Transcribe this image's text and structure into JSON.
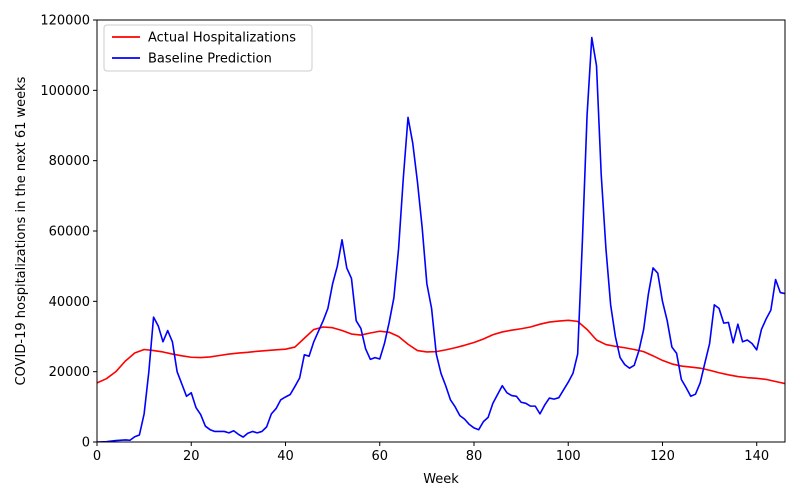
{
  "chart_data": {
    "type": "line",
    "xlabel": "Week",
    "ylabel": "COVID-19 hospitalizations in the next 61 weeks",
    "xlim": [
      0,
      146
    ],
    "ylim": [
      0,
      120000
    ],
    "xticks": [
      0,
      20,
      40,
      60,
      80,
      100,
      120,
      140
    ],
    "yticks": [
      0,
      20000,
      40000,
      60000,
      80000,
      100000,
      120000
    ],
    "grid": false,
    "legend_position": "upper-left",
    "series": [
      {
        "name": "Actual Hospitalizations",
        "color": "#ff0000",
        "points": [
          [
            0,
            16800
          ],
          [
            2,
            18000
          ],
          [
            4,
            20000
          ],
          [
            6,
            23000
          ],
          [
            8,
            25300
          ],
          [
            10,
            26300
          ],
          [
            12,
            26000
          ],
          [
            14,
            25600
          ],
          [
            16,
            25000
          ],
          [
            18,
            24500
          ],
          [
            20,
            24100
          ],
          [
            22,
            24000
          ],
          [
            24,
            24200
          ],
          [
            26,
            24600
          ],
          [
            28,
            25000
          ],
          [
            30,
            25300
          ],
          [
            32,
            25500
          ],
          [
            34,
            25800
          ],
          [
            36,
            26000
          ],
          [
            38,
            26200
          ],
          [
            40,
            26400
          ],
          [
            42,
            27000
          ],
          [
            44,
            29500
          ],
          [
            46,
            32000
          ],
          [
            48,
            32700
          ],
          [
            50,
            32500
          ],
          [
            52,
            31700
          ],
          [
            54,
            30700
          ],
          [
            56,
            30400
          ],
          [
            58,
            31000
          ],
          [
            60,
            31500
          ],
          [
            62,
            31200
          ],
          [
            64,
            30000
          ],
          [
            66,
            27800
          ],
          [
            68,
            26000
          ],
          [
            70,
            25600
          ],
          [
            72,
            25700
          ],
          [
            74,
            26200
          ],
          [
            76,
            26800
          ],
          [
            78,
            27500
          ],
          [
            80,
            28300
          ],
          [
            82,
            29300
          ],
          [
            84,
            30500
          ],
          [
            86,
            31300
          ],
          [
            88,
            31800
          ],
          [
            90,
            32200
          ],
          [
            92,
            32700
          ],
          [
            94,
            33500
          ],
          [
            96,
            34100
          ],
          [
            98,
            34400
          ],
          [
            100,
            34600
          ],
          [
            102,
            34300
          ],
          [
            104,
            32000
          ],
          [
            106,
            29000
          ],
          [
            108,
            27700
          ],
          [
            110,
            27200
          ],
          [
            112,
            26800
          ],
          [
            114,
            26300
          ],
          [
            116,
            25700
          ],
          [
            118,
            24500
          ],
          [
            120,
            23200
          ],
          [
            122,
            22200
          ],
          [
            124,
            21600
          ],
          [
            126,
            21300
          ],
          [
            128,
            21000
          ],
          [
            130,
            20400
          ],
          [
            132,
            19700
          ],
          [
            134,
            19100
          ],
          [
            136,
            18600
          ],
          [
            138,
            18300
          ],
          [
            140,
            18100
          ],
          [
            142,
            17800
          ],
          [
            144,
            17200
          ],
          [
            146,
            16600
          ]
        ]
      },
      {
        "name": "Baseline Prediction",
        "color": "#0000ff",
        "points": [
          [
            0,
            0
          ],
          [
            2,
            100
          ],
          [
            4,
            400
          ],
          [
            6,
            600
          ],
          [
            7,
            500
          ],
          [
            8,
            1500
          ],
          [
            9,
            2000
          ],
          [
            10,
            8000
          ],
          [
            11,
            20000
          ],
          [
            12,
            35500
          ],
          [
            13,
            33000
          ],
          [
            14,
            28500
          ],
          [
            15,
            31700
          ],
          [
            16,
            28500
          ],
          [
            17,
            20000
          ],
          [
            18,
            16500
          ],
          [
            19,
            13000
          ],
          [
            20,
            14000
          ],
          [
            21,
            9800
          ],
          [
            22,
            7800
          ],
          [
            23,
            4500
          ],
          [
            24,
            3500
          ],
          [
            25,
            3000
          ],
          [
            26,
            3000
          ],
          [
            27,
            3000
          ],
          [
            28,
            2600
          ],
          [
            29,
            3200
          ],
          [
            30,
            2200
          ],
          [
            31,
            1400
          ],
          [
            32,
            2500
          ],
          [
            33,
            3000
          ],
          [
            34,
            2600
          ],
          [
            35,
            3000
          ],
          [
            36,
            4300
          ],
          [
            37,
            8000
          ],
          [
            38,
            9500
          ],
          [
            39,
            12000
          ],
          [
            40,
            12800
          ],
          [
            41,
            13500
          ],
          [
            42,
            15800
          ],
          [
            43,
            18200
          ],
          [
            44,
            24800
          ],
          [
            45,
            24400
          ],
          [
            46,
            28500
          ],
          [
            47,
            31500
          ],
          [
            48,
            34500
          ],
          [
            49,
            38000
          ],
          [
            50,
            45000
          ],
          [
            51,
            50000
          ],
          [
            52,
            57500
          ],
          [
            53,
            49500
          ],
          [
            54,
            46500
          ],
          [
            55,
            34500
          ],
          [
            56,
            32300
          ],
          [
            57,
            26500
          ],
          [
            58,
            23500
          ],
          [
            59,
            24000
          ],
          [
            60,
            23600
          ],
          [
            61,
            28000
          ],
          [
            62,
            34000
          ],
          [
            63,
            41000
          ],
          [
            64,
            55000
          ],
          [
            65,
            75000
          ],
          [
            66,
            92300
          ],
          [
            67,
            85000
          ],
          [
            68,
            74000
          ],
          [
            69,
            61000
          ],
          [
            70,
            45000
          ],
          [
            71,
            38000
          ],
          [
            72,
            25000
          ],
          [
            73,
            19500
          ],
          [
            74,
            16000
          ],
          [
            75,
            12000
          ],
          [
            76,
            10000
          ],
          [
            77,
            7500
          ],
          [
            78,
            6500
          ],
          [
            79,
            5000
          ],
          [
            80,
            4000
          ],
          [
            81,
            3500
          ],
          [
            82,
            5800
          ],
          [
            83,
            7000
          ],
          [
            84,
            11000
          ],
          [
            85,
            13500
          ],
          [
            86,
            16000
          ],
          [
            87,
            14000
          ],
          [
            88,
            13200
          ],
          [
            89,
            13000
          ],
          [
            90,
            11300
          ],
          [
            91,
            11000
          ],
          [
            92,
            10200
          ],
          [
            93,
            10200
          ],
          [
            94,
            8000
          ],
          [
            95,
            10500
          ],
          [
            96,
            12500
          ],
          [
            97,
            12200
          ],
          [
            98,
            12600
          ],
          [
            99,
            14800
          ],
          [
            100,
            17000
          ],
          [
            101,
            19500
          ],
          [
            102,
            25000
          ],
          [
            103,
            57000
          ],
          [
            104,
            93000
          ],
          [
            105,
            115000
          ],
          [
            106,
            107000
          ],
          [
            107,
            76000
          ],
          [
            108,
            55000
          ],
          [
            109,
            39000
          ],
          [
            110,
            30000
          ],
          [
            111,
            24000
          ],
          [
            112,
            22000
          ],
          [
            113,
            21000
          ],
          [
            114,
            21800
          ],
          [
            115,
            26000
          ],
          [
            116,
            32000
          ],
          [
            117,
            42000
          ],
          [
            118,
            49500
          ],
          [
            119,
            48000
          ],
          [
            120,
            40000
          ],
          [
            121,
            34500
          ],
          [
            122,
            27000
          ],
          [
            123,
            25200
          ],
          [
            124,
            17800
          ],
          [
            125,
            15500
          ],
          [
            126,
            13000
          ],
          [
            127,
            13600
          ],
          [
            128,
            16800
          ],
          [
            129,
            22500
          ],
          [
            130,
            28000
          ],
          [
            131,
            39000
          ],
          [
            132,
            38000
          ],
          [
            133,
            33800
          ],
          [
            134,
            34000
          ],
          [
            135,
            28200
          ],
          [
            136,
            33500
          ],
          [
            137,
            28500
          ],
          [
            138,
            29000
          ],
          [
            139,
            28000
          ],
          [
            140,
            26200
          ],
          [
            141,
            32000
          ],
          [
            142,
            35000
          ],
          [
            143,
            37500
          ],
          [
            144,
            46200
          ],
          [
            145,
            42500
          ],
          [
            146,
            42200
          ]
        ]
      }
    ]
  }
}
